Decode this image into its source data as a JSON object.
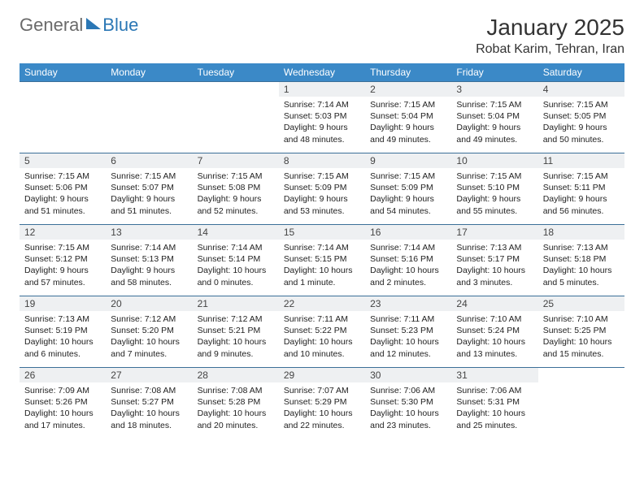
{
  "logo": {
    "part1": "General",
    "part2": "Blue"
  },
  "title": "January 2025",
  "location": "Robat Karim, Tehran, Iran",
  "header_bg": "#3b89c7",
  "row_border": "#3b6f98",
  "daynum_bg": "#eef0f2",
  "days_of_week": [
    "Sunday",
    "Monday",
    "Tuesday",
    "Wednesday",
    "Thursday",
    "Friday",
    "Saturday"
  ],
  "weeks": [
    [
      null,
      null,
      null,
      {
        "n": "1",
        "sr": "7:14 AM",
        "ss": "5:03 PM",
        "dl": "9 hours and 48 minutes."
      },
      {
        "n": "2",
        "sr": "7:15 AM",
        "ss": "5:04 PM",
        "dl": "9 hours and 49 minutes."
      },
      {
        "n": "3",
        "sr": "7:15 AM",
        "ss": "5:04 PM",
        "dl": "9 hours and 49 minutes."
      },
      {
        "n": "4",
        "sr": "7:15 AM",
        "ss": "5:05 PM",
        "dl": "9 hours and 50 minutes."
      }
    ],
    [
      {
        "n": "5",
        "sr": "7:15 AM",
        "ss": "5:06 PM",
        "dl": "9 hours and 51 minutes."
      },
      {
        "n": "6",
        "sr": "7:15 AM",
        "ss": "5:07 PM",
        "dl": "9 hours and 51 minutes."
      },
      {
        "n": "7",
        "sr": "7:15 AM",
        "ss": "5:08 PM",
        "dl": "9 hours and 52 minutes."
      },
      {
        "n": "8",
        "sr": "7:15 AM",
        "ss": "5:09 PM",
        "dl": "9 hours and 53 minutes."
      },
      {
        "n": "9",
        "sr": "7:15 AM",
        "ss": "5:09 PM",
        "dl": "9 hours and 54 minutes."
      },
      {
        "n": "10",
        "sr": "7:15 AM",
        "ss": "5:10 PM",
        "dl": "9 hours and 55 minutes."
      },
      {
        "n": "11",
        "sr": "7:15 AM",
        "ss": "5:11 PM",
        "dl": "9 hours and 56 minutes."
      }
    ],
    [
      {
        "n": "12",
        "sr": "7:15 AM",
        "ss": "5:12 PM",
        "dl": "9 hours and 57 minutes."
      },
      {
        "n": "13",
        "sr": "7:14 AM",
        "ss": "5:13 PM",
        "dl": "9 hours and 58 minutes."
      },
      {
        "n": "14",
        "sr": "7:14 AM",
        "ss": "5:14 PM",
        "dl": "10 hours and 0 minutes."
      },
      {
        "n": "15",
        "sr": "7:14 AM",
        "ss": "5:15 PM",
        "dl": "10 hours and 1 minute."
      },
      {
        "n": "16",
        "sr": "7:14 AM",
        "ss": "5:16 PM",
        "dl": "10 hours and 2 minutes."
      },
      {
        "n": "17",
        "sr": "7:13 AM",
        "ss": "5:17 PM",
        "dl": "10 hours and 3 minutes."
      },
      {
        "n": "18",
        "sr": "7:13 AM",
        "ss": "5:18 PM",
        "dl": "10 hours and 5 minutes."
      }
    ],
    [
      {
        "n": "19",
        "sr": "7:13 AM",
        "ss": "5:19 PM",
        "dl": "10 hours and 6 minutes."
      },
      {
        "n": "20",
        "sr": "7:12 AM",
        "ss": "5:20 PM",
        "dl": "10 hours and 7 minutes."
      },
      {
        "n": "21",
        "sr": "7:12 AM",
        "ss": "5:21 PM",
        "dl": "10 hours and 9 minutes."
      },
      {
        "n": "22",
        "sr": "7:11 AM",
        "ss": "5:22 PM",
        "dl": "10 hours and 10 minutes."
      },
      {
        "n": "23",
        "sr": "7:11 AM",
        "ss": "5:23 PM",
        "dl": "10 hours and 12 minutes."
      },
      {
        "n": "24",
        "sr": "7:10 AM",
        "ss": "5:24 PM",
        "dl": "10 hours and 13 minutes."
      },
      {
        "n": "25",
        "sr": "7:10 AM",
        "ss": "5:25 PM",
        "dl": "10 hours and 15 minutes."
      }
    ],
    [
      {
        "n": "26",
        "sr": "7:09 AM",
        "ss": "5:26 PM",
        "dl": "10 hours and 17 minutes."
      },
      {
        "n": "27",
        "sr": "7:08 AM",
        "ss": "5:27 PM",
        "dl": "10 hours and 18 minutes."
      },
      {
        "n": "28",
        "sr": "7:08 AM",
        "ss": "5:28 PM",
        "dl": "10 hours and 20 minutes."
      },
      {
        "n": "29",
        "sr": "7:07 AM",
        "ss": "5:29 PM",
        "dl": "10 hours and 22 minutes."
      },
      {
        "n": "30",
        "sr": "7:06 AM",
        "ss": "5:30 PM",
        "dl": "10 hours and 23 minutes."
      },
      {
        "n": "31",
        "sr": "7:06 AM",
        "ss": "5:31 PM",
        "dl": "10 hours and 25 minutes."
      },
      null
    ]
  ],
  "labels": {
    "sunrise": "Sunrise:",
    "sunset": "Sunset:",
    "daylight": "Daylight:"
  }
}
